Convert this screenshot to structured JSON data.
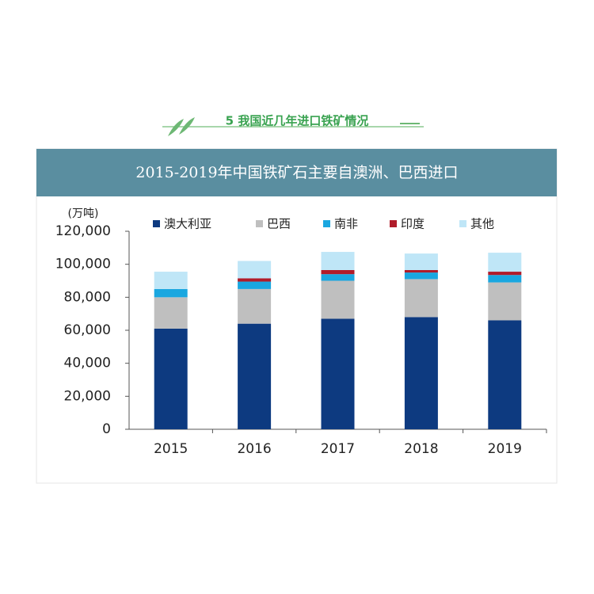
{
  "header": {
    "title": "5 我国近几年进口铁矿情况"
  },
  "chart_data": {
    "type": "stacked_bar",
    "title": "2015-2019年中国铁矿石主要自澳洲、巴西进口",
    "y_label": "(万吨)",
    "categories": [
      "2015",
      "2016",
      "2017",
      "2018",
      "2019"
    ],
    "series": [
      {
        "name": "澳大利亚",
        "color": "#0d3a80",
        "values": [
          61000,
          64000,
          67000,
          68000,
          66000
        ]
      },
      {
        "name": "巴西",
        "color": "#bfbfbf",
        "values": [
          19000,
          21000,
          23000,
          23000,
          23000
        ]
      },
      {
        "name": "南非",
        "color": "#1aa7e0",
        "values": [
          5000,
          4500,
          4000,
          4000,
          4500
        ]
      },
      {
        "name": "印度",
        "color": "#b01c2a",
        "values": [
          0,
          2000,
          2500,
          1500,
          2000
        ]
      },
      {
        "name": "其他",
        "color": "#bfe6f7",
        "values": [
          10500,
          10500,
          11000,
          10000,
          11500
        ]
      }
    ],
    "ylim": [
      0,
      120000
    ],
    "yticks": [
      0,
      {
        "value": 20000,
        "label": "20,000"
      },
      {
        "value": 40000,
        "label": "40,000"
      },
      {
        "value": 60000,
        "label": "60,000"
      },
      {
        "value": 80000,
        "label": "80,000"
      },
      {
        "value": 100000,
        "label": "100,000"
      },
      {
        "value": 120000,
        "label": "120,000"
      }
    ]
  }
}
